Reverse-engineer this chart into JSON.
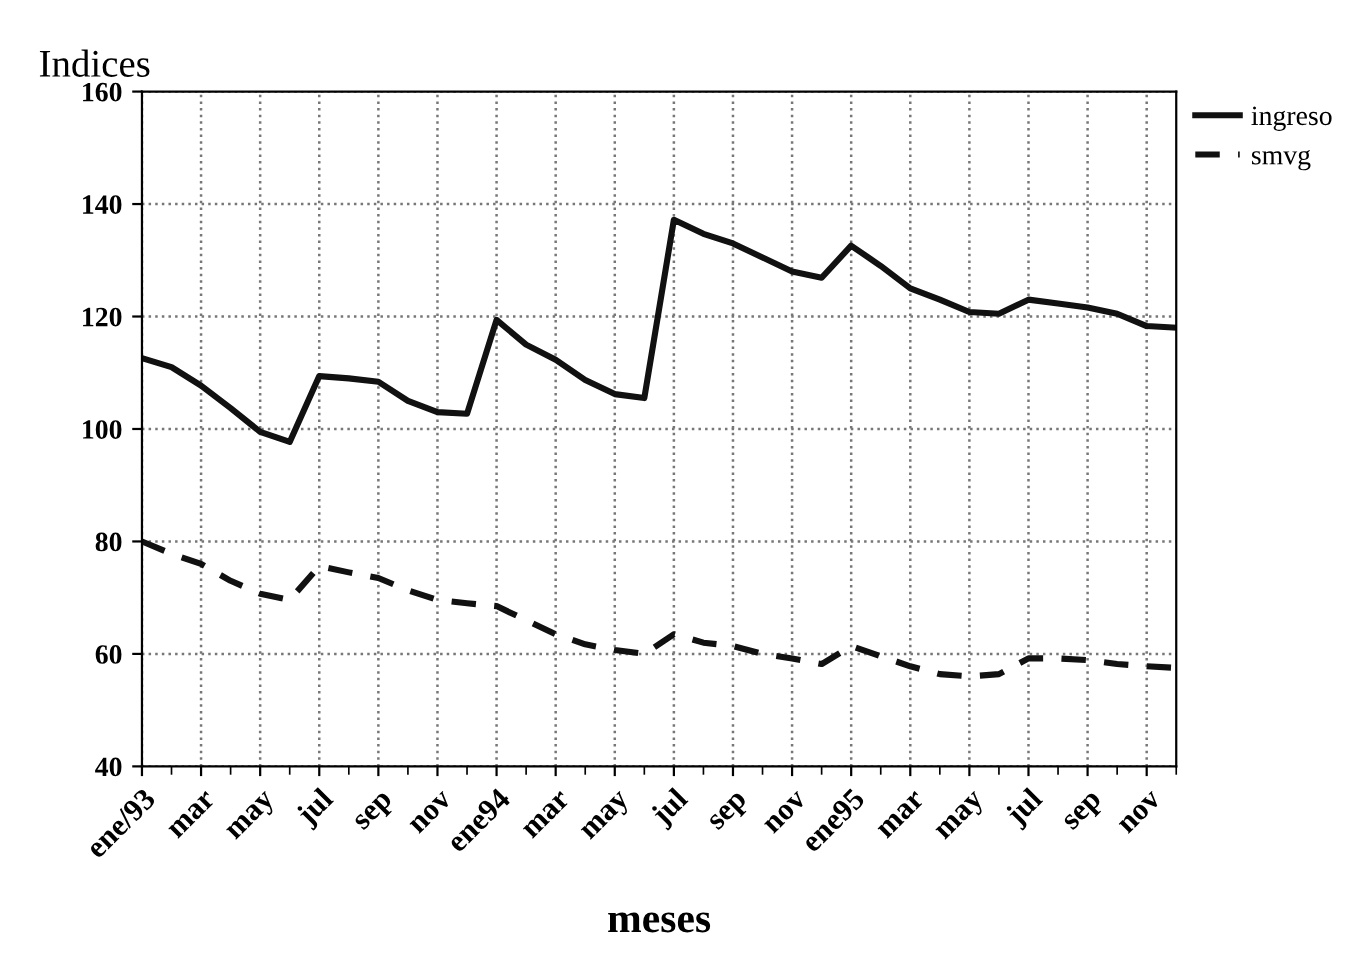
{
  "chart_data": {
    "type": "line",
    "ylabel": "Indices",
    "xlabel": "meses",
    "categories": [
      "ene/93",
      null,
      "mar",
      null,
      "may",
      null,
      "jul",
      null,
      "sep",
      null,
      "nov",
      null,
      "ene94",
      null,
      "mar",
      null,
      "may",
      null,
      "jul",
      null,
      "sep",
      null,
      "nov",
      null,
      "ene95",
      null,
      "mar",
      null,
      "may",
      null,
      "jul",
      null,
      "sep",
      null,
      "nov",
      null
    ],
    "series": [
      {
        "name": "ingreso",
        "color": "#111111",
        "line_style": "solid",
        "values": [
          112.6,
          111,
          107.7,
          103.7,
          99.5,
          97.7,
          109.4,
          109,
          108.4,
          105,
          103,
          102.7,
          119.4,
          115,
          112.3,
          108.7,
          106.2,
          105.5,
          137.2,
          134.7,
          133,
          130.5,
          128,
          126.9,
          132.6,
          129,
          125,
          123,
          120.8,
          120.5,
          123,
          122.3,
          121.6,
          120.5,
          118.3,
          118
        ]
      },
      {
        "name": "smvg",
        "color": "#111111",
        "line_style": "dashed",
        "values": [
          80,
          77.8,
          76,
          73,
          70.7,
          69.6,
          75.6,
          74.5,
          73.5,
          71.3,
          69.6,
          69,
          68.5,
          66,
          63.5,
          61.7,
          60.7,
          60,
          63.5,
          62,
          61.4,
          60,
          59.2,
          58.2,
          61.4,
          59.6,
          57.8,
          56.4,
          56,
          56.4,
          59.2,
          59.2,
          58.9,
          58.2,
          57.8,
          57.5
        ]
      }
    ],
    "ylim": [
      40,
      160
    ],
    "yticks": [
      40,
      60,
      80,
      100,
      120,
      140,
      160
    ],
    "grid": true,
    "legend": "top right",
    "marker": "none"
  }
}
